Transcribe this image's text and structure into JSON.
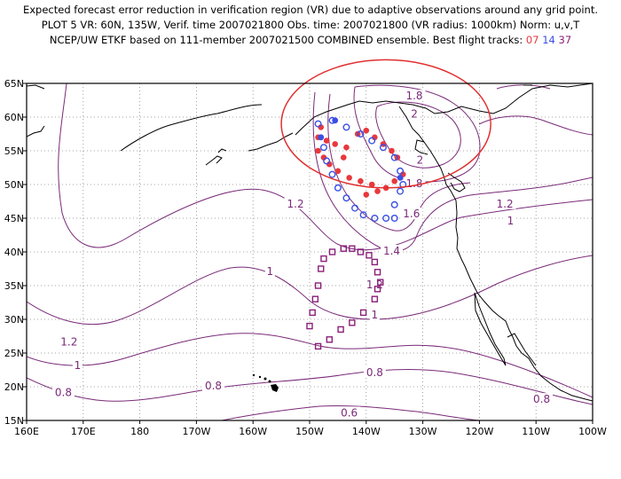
{
  "title": {
    "line1": "Expected forecast error reduction in verification region (VR) due to adaptive observations around any grid point.",
    "line2": "PLOT 5 VR: 60N, 135W, Verif. time 2007021800 Obs. time: 2007021800 (VR radius: 1000km) Norm: u,v,T",
    "line3_prefix": "NCEP/UW ETKF based on 111-member 2007021500 COMBINED ensemble.  Best flight tracks:",
    "track1": "07",
    "track2": "14",
    "track3": "37"
  },
  "colors": {
    "track1": "#e8383c",
    "track2": "#3a4fe6",
    "track3": "#8a1f7a",
    "contour": "#7a2a78",
    "coast": "#000000",
    "vr_circle": "#e03030"
  },
  "axes": {
    "x_ticks": [
      {
        "lon": 160,
        "label": "160E"
      },
      {
        "lon": 170,
        "label": "170E"
      },
      {
        "lon": 180,
        "label": "180"
      },
      {
        "lon": 190,
        "label": "170W"
      },
      {
        "lon": 200,
        "label": "160W"
      },
      {
        "lon": 210,
        "label": "150W"
      },
      {
        "lon": 220,
        "label": "140W"
      },
      {
        "lon": 230,
        "label": "130W"
      },
      {
        "lon": 240,
        "label": "120W"
      },
      {
        "lon": 250,
        "label": "110W"
      },
      {
        "lon": 260,
        "label": "100W"
      }
    ],
    "y_ticks": [
      {
        "lat": 15,
        "label": "15N"
      },
      {
        "lat": 20,
        "label": "20N"
      },
      {
        "lat": 25,
        "label": "25N"
      },
      {
        "lat": 30,
        "label": "30N"
      },
      {
        "lat": 35,
        "label": "35N"
      },
      {
        "lat": 40,
        "label": "40N"
      },
      {
        "lat": 45,
        "label": "45N"
      },
      {
        "lat": 50,
        "label": "50N"
      },
      {
        "lat": 55,
        "label": "55N"
      },
      {
        "lat": 60,
        "label": "60N"
      },
      {
        "lat": 65,
        "label": "65N"
      }
    ],
    "lon_range": [
      160,
      260
    ],
    "lat_range": [
      15,
      65
    ],
    "grid": "dotted"
  },
  "contour_labels": [
    {
      "text": "1.8",
      "lon": 228.5,
      "lat": 63.0
    },
    {
      "text": "2",
      "lon": 228.5,
      "lat": 60.3
    },
    {
      "text": "2",
      "lon": 229.5,
      "lat": 53.5
    },
    {
      "text": "1.8",
      "lon": 228.5,
      "lat": 50.0
    },
    {
      "text": "1.6",
      "lon": 228.0,
      "lat": 45.5
    },
    {
      "text": "1.4",
      "lon": 224.5,
      "lat": 40.0
    },
    {
      "text": "1.2",
      "lon": 221.5,
      "lat": 35.0
    },
    {
      "text": "1",
      "lon": 221.5,
      "lat": 30.5
    },
    {
      "text": "1.2",
      "lon": 207.5,
      "lat": 47.0
    },
    {
      "text": "1",
      "lon": 203.0,
      "lat": 37.0
    },
    {
      "text": "1.2",
      "lon": 167.5,
      "lat": 26.5
    },
    {
      "text": "1",
      "lon": 169.0,
      "lat": 23.0
    },
    {
      "text": "0.8",
      "lon": 166.5,
      "lat": 19.0
    },
    {
      "text": "0.8",
      "lon": 193.0,
      "lat": 20.0
    },
    {
      "text": "0.8",
      "lon": 221.5,
      "lat": 22.0
    },
    {
      "text": "0.6",
      "lon": 217.0,
      "lat": 16.0
    },
    {
      "text": "1.2",
      "lon": 244.5,
      "lat": 47.0
    },
    {
      "text": "1",
      "lon": 245.5,
      "lat": 44.5
    },
    {
      "text": "0.8",
      "lon": 251.0,
      "lat": 18.0
    }
  ],
  "tracks": {
    "red_dots": [
      [
        211.5,
        57
      ],
      [
        213.0,
        56.5
      ],
      [
        214.5,
        56
      ],
      [
        216.5,
        55.5
      ],
      [
        218.5,
        57.5
      ],
      [
        220.0,
        58
      ],
      [
        221.5,
        57
      ],
      [
        223.0,
        56
      ],
      [
        224.5,
        55
      ],
      [
        225.5,
        54
      ],
      [
        211.5,
        55
      ],
      [
        212.5,
        54
      ],
      [
        213.5,
        53
      ],
      [
        215.0,
        52
      ],
      [
        217.0,
        51
      ],
      [
        219.0,
        50.5
      ],
      [
        221.0,
        50
      ],
      [
        223.5,
        49.5
      ],
      [
        225.0,
        50.5
      ],
      [
        226.5,
        51.5
      ],
      [
        216.0,
        54
      ],
      [
        212.0,
        58.5
      ],
      [
        222.0,
        49
      ],
      [
        220.0,
        48.5
      ]
    ],
    "blue_circles": [
      [
        211.5,
        59
      ],
      [
        214.0,
        59.5
      ],
      [
        216.5,
        58.5
      ],
      [
        219.0,
        57.5
      ],
      [
        221.0,
        56.5
      ],
      [
        223.0,
        55.5
      ],
      [
        225.0,
        54
      ],
      [
        226.0,
        52
      ],
      [
        226.5,
        50
      ],
      [
        212.5,
        55.5
      ],
      [
        213.0,
        53.5
      ],
      [
        214.0,
        51.5
      ],
      [
        215.0,
        49.5
      ],
      [
        216.5,
        48
      ],
      [
        218.0,
        46.5
      ],
      [
        219.5,
        45.5
      ],
      [
        221.5,
        45
      ],
      [
        223.5,
        45
      ],
      [
        225.0,
        45
      ],
      [
        225.0,
        47
      ],
      [
        226.0,
        49
      ]
    ],
    "blue_dots": [
      [
        214.5,
        59.5
      ],
      [
        212.0,
        57
      ],
      [
        226.0,
        51
      ]
    ],
    "purple_squares": [
      [
        214.0,
        40
      ],
      [
        216.0,
        40.5
      ],
      [
        217.5,
        40.5
      ],
      [
        219.0,
        40
      ],
      [
        220.5,
        39.5
      ],
      [
        221.5,
        38.5
      ],
      [
        222.0,
        37
      ],
      [
        222.5,
        35.5
      ],
      [
        222.0,
        34.5
      ],
      [
        221.5,
        33
      ],
      [
        212.5,
        39
      ],
      [
        212.0,
        37.5
      ],
      [
        211.5,
        35
      ],
      [
        211.0,
        33
      ],
      [
        210.5,
        31
      ],
      [
        210.0,
        29
      ],
      [
        211.5,
        26
      ],
      [
        213.5,
        27
      ],
      [
        215.5,
        28.5
      ],
      [
        217.5,
        29.5
      ],
      [
        219.5,
        31
      ]
    ]
  },
  "vr_circle": {
    "lon": 223.5,
    "lat": 59.0,
    "rx_deg": 18.5,
    "ry_deg": 9.5
  }
}
